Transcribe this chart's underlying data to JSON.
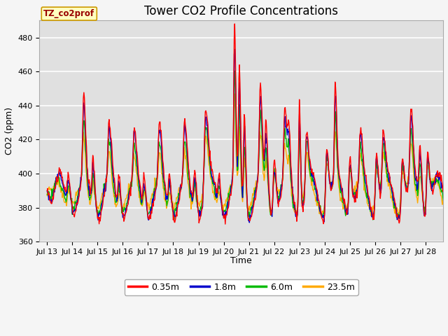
{
  "title": "Tower CO2 Profile Concentrations",
  "xlabel": "Time",
  "ylabel": "CO2 (ppm)",
  "ylim": [
    360,
    490
  ],
  "yticks": [
    360,
    380,
    400,
    420,
    440,
    460,
    480
  ],
  "x_tick_labels": [
    "Jul 13",
    "Jul 14",
    "Jul 15",
    "Jul 16",
    "Jul 17",
    "Jul 18",
    "Jul 19",
    "Jul 20",
    "Jul 21",
    "Jul 22",
    "Jul 23",
    "Jul 24",
    "Jul 25",
    "Jul 26",
    "Jul 27",
    "Jul 28"
  ],
  "series_labels": [
    "0.35m",
    "1.8m",
    "6.0m",
    "23.5m"
  ],
  "series_colors": [
    "#ff0000",
    "#0000cc",
    "#00bb00",
    "#ffaa00"
  ],
  "plot_bg_color": "#e0e0e0",
  "fig_bg_color": "#f5f5f5",
  "label_box_text": "TZ_co2prof",
  "label_box_facecolor": "#ffffc0",
  "label_box_edgecolor": "#cc9900",
  "title_fontsize": 12,
  "axis_fontsize": 9,
  "tick_fontsize": 8,
  "legend_fontsize": 9,
  "line_width": 1.0
}
